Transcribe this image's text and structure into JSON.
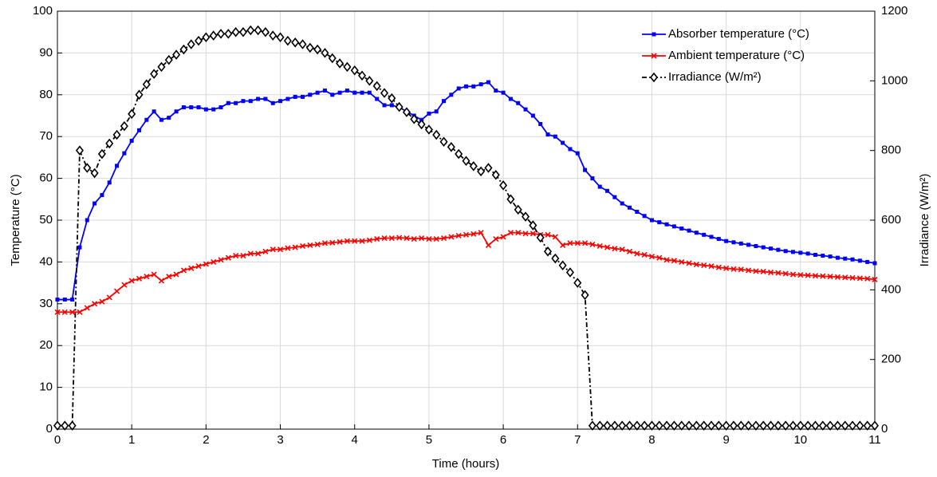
{
  "chart_data": {
    "type": "line",
    "xlabel": "Time (hours)",
    "ylabel": "Temperature (°C)",
    "y2label": "Irradiance (W/m²)",
    "xlim": [
      0,
      11
    ],
    "xticks": [
      0,
      1,
      2,
      3,
      4,
      5,
      6,
      7,
      8,
      9,
      10,
      11
    ],
    "ylim": [
      0,
      100
    ],
    "yticks": [
      0,
      10,
      20,
      30,
      40,
      50,
      60,
      70,
      80,
      90,
      100
    ],
    "y2lim": [
      0,
      1200
    ],
    "y2ticks": [
      0,
      200,
      400,
      600,
      800,
      1000,
      1200
    ],
    "grid": true,
    "legend": "upper right",
    "x": [
      0,
      0.1,
      0.2,
      0.3,
      0.4,
      0.5,
      0.6,
      0.7,
      0.8,
      0.9,
      1,
      1.1,
      1.2,
      1.3,
      1.4,
      1.5,
      1.6,
      1.7,
      1.8,
      1.9,
      2,
      2.1,
      2.2,
      2.3,
      2.4,
      2.5,
      2.6,
      2.7,
      2.8,
      2.9,
      3,
      3.1,
      3.2,
      3.3,
      3.4,
      3.5,
      3.6,
      3.7,
      3.8,
      3.9,
      4,
      4.1,
      4.2,
      4.3,
      4.4,
      4.5,
      4.6,
      4.7,
      4.8,
      4.9,
      5,
      5.1,
      5.2,
      5.3,
      5.4,
      5.5,
      5.6,
      5.7,
      5.8,
      5.9,
      6,
      6.1,
      6.2,
      6.3,
      6.4,
      6.5,
      6.6,
      6.7,
      6.8,
      6.9,
      7,
      7.1,
      7.2,
      7.3,
      7.4,
      7.5,
      7.6,
      7.7,
      7.8,
      7.9,
      8,
      8.1,
      8.2,
      8.3,
      8.4,
      8.5,
      8.6,
      8.7,
      8.8,
      8.9,
      9,
      9.1,
      9.2,
      9.3,
      9.4,
      9.5,
      9.6,
      9.7,
      9.8,
      9.9,
      10,
      10.1,
      10.2,
      10.3,
      10.4,
      10.5,
      10.6,
      10.7,
      10.8,
      10.9,
      11
    ],
    "series": [
      {
        "name": "Absorber temperature (°C)",
        "color": "#0000ff",
        "marker": "square",
        "dash": "solid",
        "values": [
          31,
          31,
          31,
          43.5,
          50,
          54,
          56,
          59,
          63,
          66,
          69,
          71.5,
          74,
          76,
          74,
          74.5,
          76,
          77,
          77,
          77,
          76.5,
          76.5,
          77,
          78,
          78,
          78.5,
          78.5,
          79,
          79,
          78,
          78.5,
          79,
          79.5,
          79.5,
          80,
          80.5,
          81,
          80,
          80.5,
          81,
          80.5,
          80.5,
          80.5,
          79,
          77.5,
          77.5,
          77,
          76,
          75,
          74,
          75.5,
          76,
          78.5,
          80,
          81.5,
          82,
          82,
          82.5,
          83,
          81,
          80.5,
          79,
          78,
          76.5,
          75,
          73,
          70.5,
          70,
          68.5,
          67,
          66,
          62,
          60,
          58,
          57,
          55.5,
          54,
          53,
          52,
          51,
          50,
          49.5,
          49,
          48.5,
          48,
          47.5,
          47,
          46.5,
          46,
          45.5,
          45,
          44.7,
          44.4,
          44.1,
          43.8,
          43.5,
          43.2,
          42.9,
          42.6,
          42.4,
          42.2,
          42,
          41.7,
          41.5,
          41.3,
          41,
          40.8,
          40.6,
          40.3,
          40,
          39.7
        ]
      },
      {
        "name": "Ambient temperature (°C)",
        "color": "#ff0000",
        "marker": "x",
        "dash": "solid",
        "values": [
          28,
          28,
          28,
          28,
          29,
          30,
          30.5,
          31.5,
          33,
          34.5,
          35.5,
          36,
          36.5,
          37,
          35.5,
          36.5,
          37,
          38,
          38.5,
          39,
          39.5,
          40,
          40.5,
          41,
          41.5,
          41.5,
          42,
          42,
          42.5,
          43,
          43,
          43.3,
          43.5,
          43.8,
          44,
          44.2,
          44.5,
          44.6,
          44.8,
          45,
          45,
          45,
          45.2,
          45.5,
          45.7,
          45.7,
          45.8,
          45.7,
          45.5,
          45.7,
          45.5,
          45.5,
          45.7,
          46,
          46.3,
          46.5,
          46.7,
          47,
          44,
          45.5,
          46,
          47,
          47,
          46.8,
          46.8,
          46.5,
          46.5,
          46,
          44,
          44.5,
          44.5,
          44.5,
          44.2,
          43.8,
          43.5,
          43.2,
          43,
          42.5,
          42,
          41.7,
          41.3,
          41,
          40.5,
          40.3,
          40,
          39.7,
          39.4,
          39.2,
          39,
          38.7,
          38.5,
          38.3,
          38.2,
          38,
          37.8,
          37.7,
          37.5,
          37.4,
          37.2,
          37,
          36.9,
          36.8,
          36.7,
          36.6,
          36.5,
          36.4,
          36.3,
          36.2,
          36.1,
          36,
          35.8
        ]
      },
      {
        "name": "Irradiance (W/m²)",
        "color": "#000000",
        "marker": "diamond",
        "dash": "dashdot",
        "axis": "y2",
        "values": [
          10,
          10,
          10,
          800,
          750,
          735,
          790,
          820,
          845,
          870,
          905,
          960,
          990,
          1020,
          1040,
          1060,
          1075,
          1090,
          1105,
          1115,
          1125,
          1130,
          1135,
          1135,
          1140,
          1140,
          1145,
          1145,
          1140,
          1130,
          1125,
          1115,
          1110,
          1105,
          1095,
          1090,
          1080,
          1065,
          1050,
          1040,
          1030,
          1015,
          1000,
          985,
          965,
          950,
          925,
          910,
          890,
          875,
          860,
          845,
          825,
          810,
          790,
          770,
          755,
          740,
          750,
          730,
          700,
          660,
          630,
          610,
          585,
          550,
          510,
          490,
          470,
          450,
          420,
          385,
          10,
          10,
          10,
          10,
          10,
          10,
          10,
          10,
          10,
          10,
          10,
          10,
          10,
          10,
          10,
          10,
          10,
          10,
          10,
          10,
          10,
          10,
          10,
          10,
          10,
          10,
          10,
          10,
          10,
          10,
          10,
          10,
          10,
          10,
          10,
          10,
          10,
          10,
          10
        ]
      }
    ]
  }
}
